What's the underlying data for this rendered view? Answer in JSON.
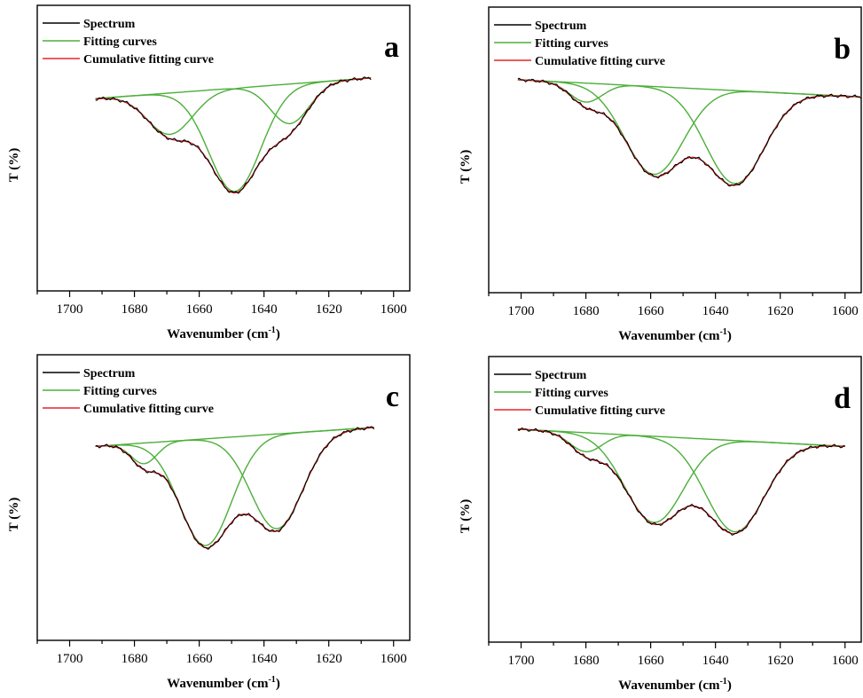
{
  "chart_data": [
    {
      "type": "line",
      "panel_label": "a",
      "xlabel": "Wavenumber (cm",
      "xlabel_sup": "-1",
      "xlabel_tail": ")",
      "ylabel": "T (%)",
      "xlim": [
        1710,
        1595
      ],
      "xticks": [
        1700,
        1680,
        1660,
        1640,
        1620,
        1600
      ],
      "legend": [
        "Spectrum",
        "Fitting curves",
        "Cumulative fitting curve"
      ],
      "legend_position": "top-left",
      "colors": {
        "spectrum": "#000000",
        "fitting": "#4caf3a",
        "cumulative": "#e8232a"
      },
      "range": [
        1692,
        1607
      ],
      "baseline": [
        0.86,
        0.98
      ],
      "bands": [
        {
          "center": 1669,
          "depth": 0.24,
          "width": 7
        },
        {
          "center": 1649,
          "depth": 0.6,
          "width": 8
        },
        {
          "center": 1632,
          "depth": 0.23,
          "width": 6
        }
      ]
    },
    {
      "type": "line",
      "panel_label": "b",
      "xlabel": "Wavenumber (cm",
      "xlabel_sup": "-1",
      "xlabel_tail": ")",
      "ylabel": "T (%)",
      "xlim": [
        1710,
        1595
      ],
      "xticks": [
        1700,
        1680,
        1660,
        1640,
        1620,
        1600
      ],
      "legend": [
        "Spectrum",
        "Fitting curves",
        "Cumulative fitting curve"
      ],
      "legend_position": "top-left",
      "colors": {
        "spectrum": "#000000",
        "fitting": "#4caf3a",
        "cumulative": "#e8232a"
      },
      "range": [
        1701,
        1595
      ],
      "baseline": [
        0.98,
        0.88
      ],
      "bands": [
        {
          "center": 1680,
          "depth": 0.11,
          "width": 5
        },
        {
          "center": 1659,
          "depth": 0.51,
          "width": 9
        },
        {
          "center": 1634,
          "depth": 0.54,
          "width": 9
        }
      ]
    },
    {
      "type": "line",
      "panel_label": "c",
      "xlabel": "Wavenumber (cm",
      "xlabel_sup": "-1",
      "xlabel_tail": ")",
      "ylabel": "T (%)",
      "xlim": [
        1710,
        1595
      ],
      "xticks": [
        1700,
        1680,
        1660,
        1640,
        1620,
        1600
      ],
      "legend": [
        "Spectrum",
        "Fitting curves",
        "Cumulative fitting curve"
      ],
      "legend_position": "top-left",
      "colors": {
        "spectrum": "#000000",
        "fitting": "#4caf3a",
        "cumulative": "#e8232a"
      },
      "range": [
        1692,
        1606
      ],
      "baseline": [
        0.87,
        0.98
      ],
      "bands": [
        {
          "center": 1677,
          "depth": 0.12,
          "width": 4
        },
        {
          "center": 1658,
          "depth": 0.62,
          "width": 8
        },
        {
          "center": 1636,
          "depth": 0.55,
          "width": 8
        }
      ]
    },
    {
      "type": "line",
      "panel_label": "d",
      "xlabel": "Wavenumber (cm",
      "xlabel_sup": "-1",
      "xlabel_tail": ")",
      "ylabel": "T (%)",
      "xlim": [
        1710,
        1595
      ],
      "xticks": [
        1700,
        1680,
        1660,
        1640,
        1620,
        1600
      ],
      "legend": [
        "Spectrum",
        "Fitting curves",
        "Cumulative fitting curve"
      ],
      "legend_position": "top-left",
      "colors": {
        "spectrum": "#000000",
        "fitting": "#4caf3a",
        "cumulative": "#e8232a"
      },
      "range": [
        1701,
        1600
      ],
      "baseline": [
        0.98,
        0.88
      ],
      "bands": [
        {
          "center": 1680,
          "depth": 0.11,
          "width": 5
        },
        {
          "center": 1659,
          "depth": 0.5,
          "width": 9
        },
        {
          "center": 1634,
          "depth": 0.53,
          "width": 9
        }
      ]
    }
  ]
}
